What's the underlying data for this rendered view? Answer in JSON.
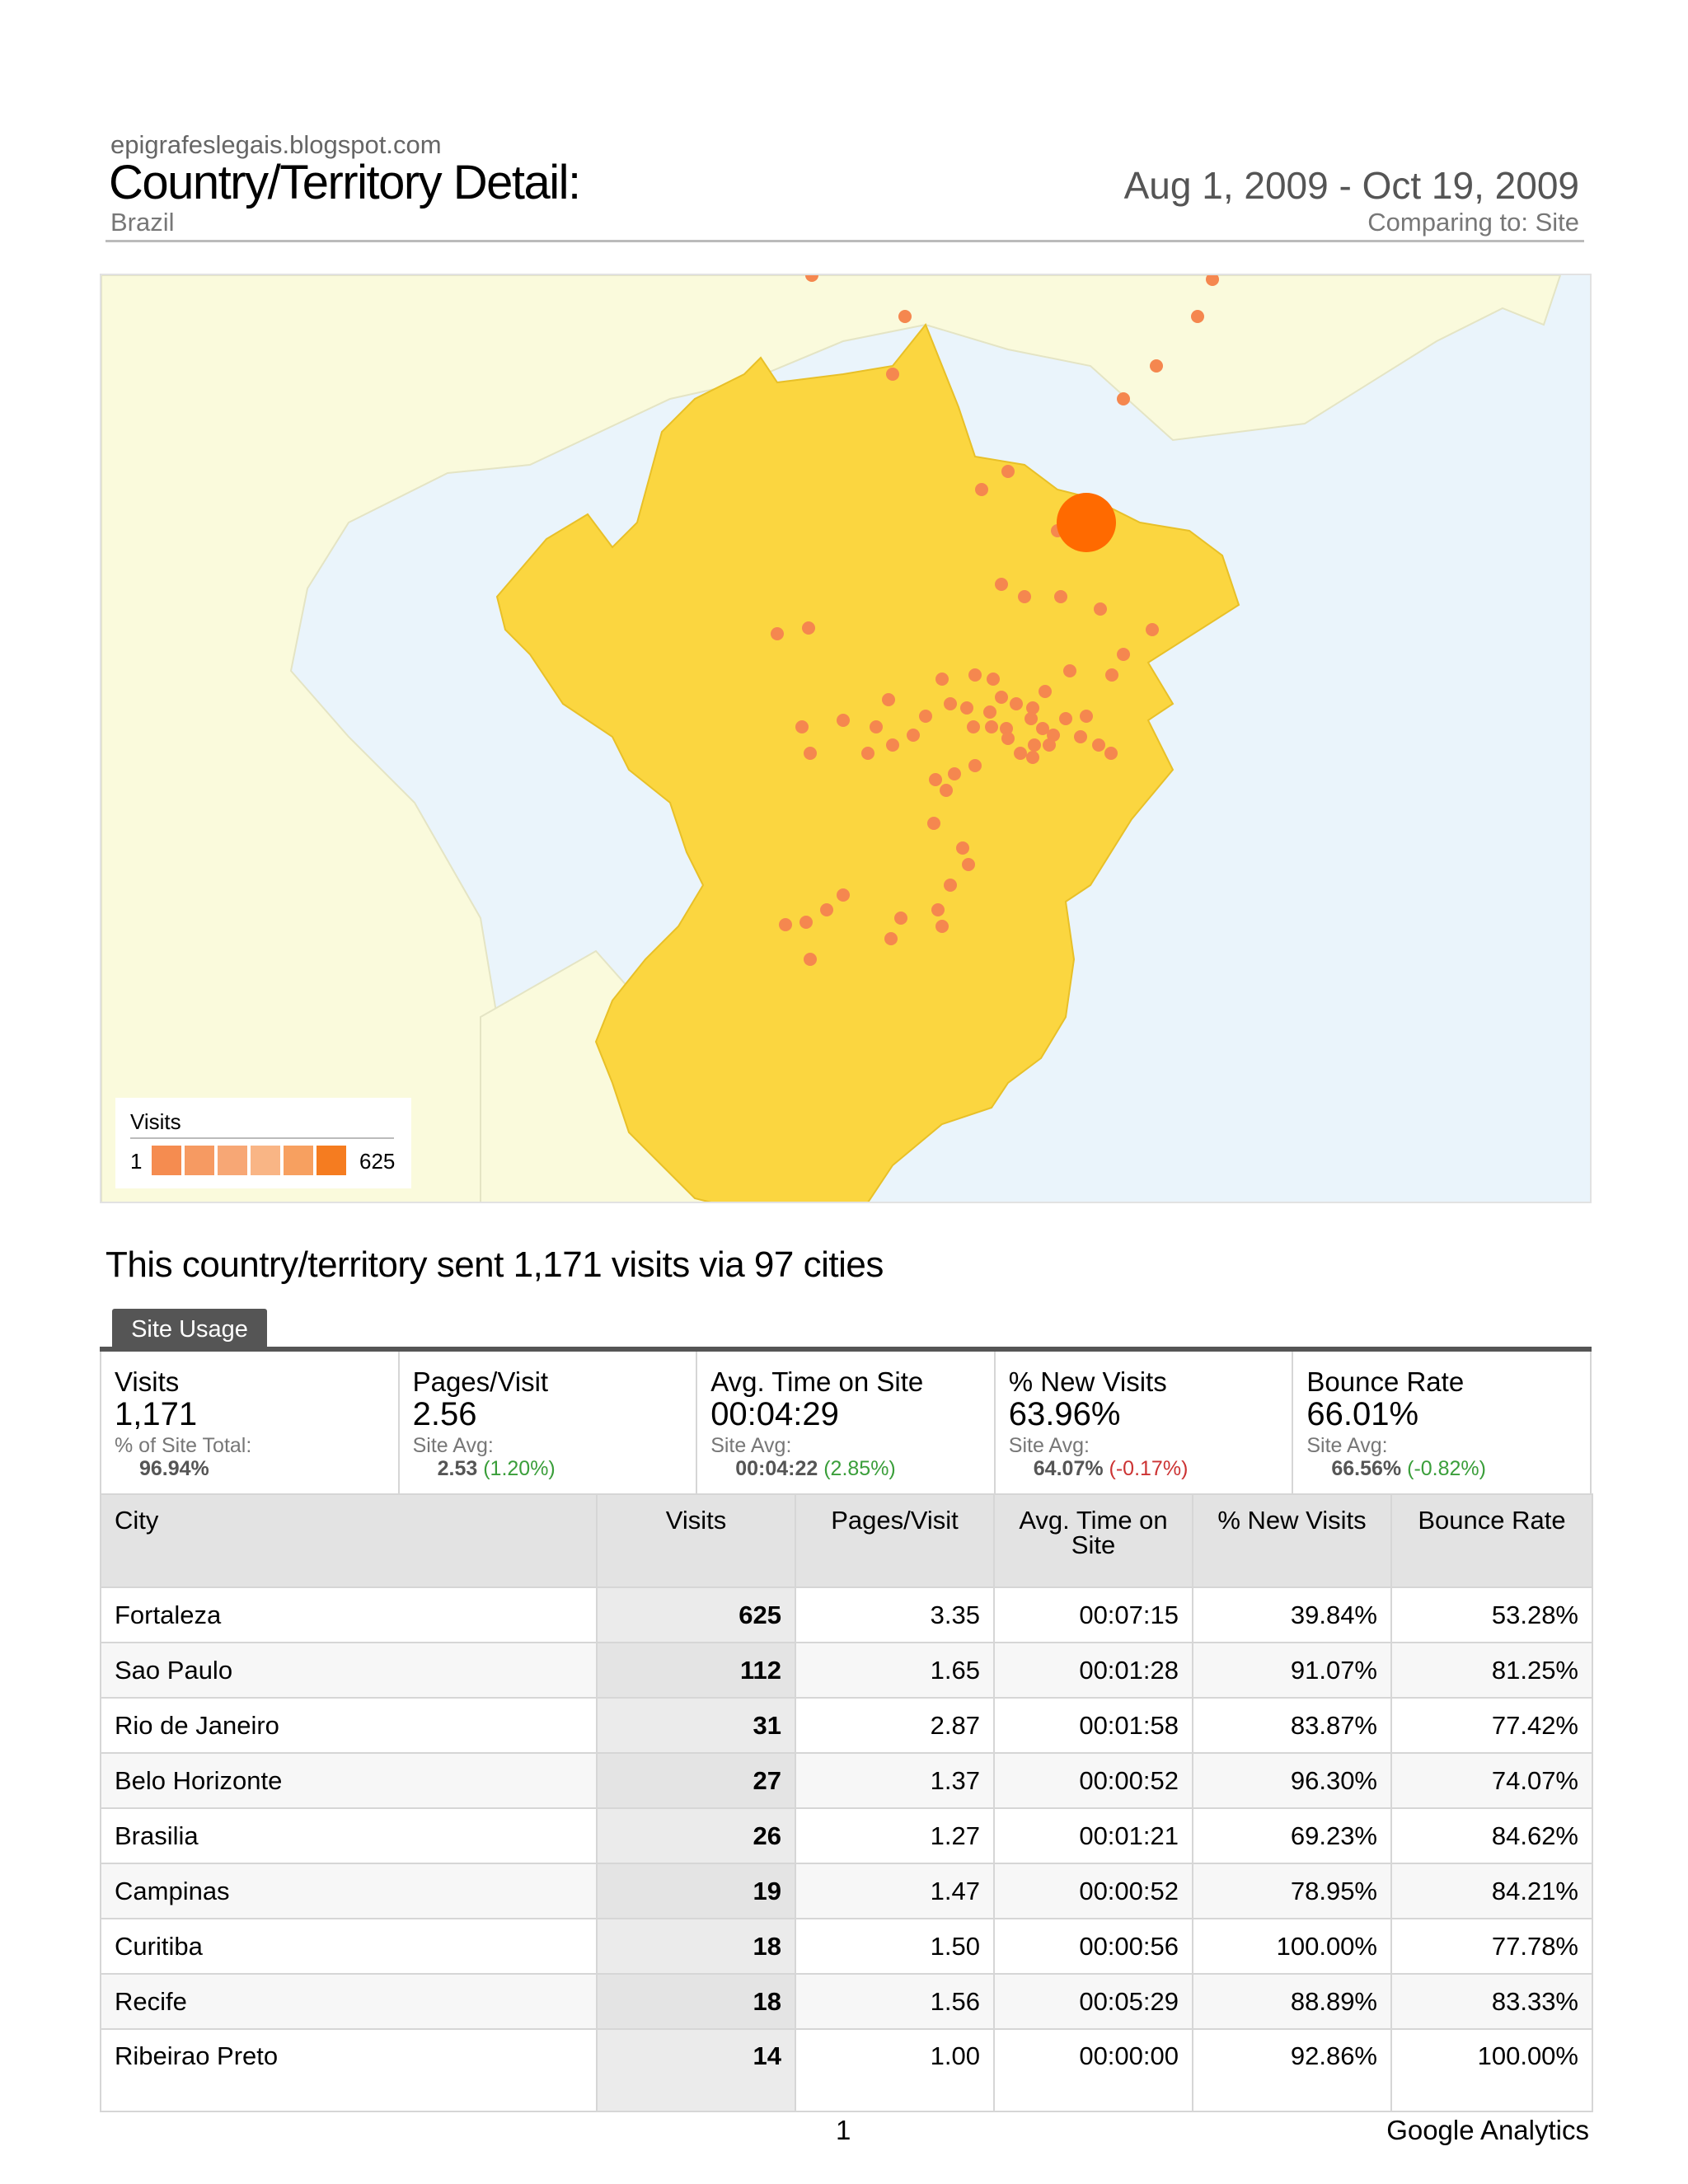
{
  "header": {
    "site": "epigrafeslegais.blogspot.com",
    "title": "Country/Territory Detail:",
    "subtitle": "Brazil",
    "date_range": "Aug 1, 2009 - Oct 19, 2009",
    "comparing": "Comparing to: Site"
  },
  "map": {
    "legend_title": "Visits",
    "legend_min": "1",
    "legend_max": "625",
    "legend_colors": [
      "#f58c50",
      "#f69a62",
      "#f7a775",
      "#f9b585",
      "#f7a060",
      "#f57c20"
    ],
    "country_color": "#fbd640",
    "land_color": "#fafadc",
    "ocean_color": "#eaf4fb",
    "marker_color": "#f5874f",
    "highlight_marker_color": "#ff6a00"
  },
  "summary_text": "This country/territory sent 1,171 visits via 97 cities",
  "tab_label": "Site Usage",
  "metrics": [
    {
      "label": "Visits",
      "value": "1,171",
      "sub": "% of Site Total:",
      "avg": "96.94%",
      "delta": "",
      "delta_sign": ""
    },
    {
      "label": "Pages/Visit",
      "value": "2.56",
      "sub": "Site Avg:",
      "avg": "2.53",
      "delta": "(1.20%)",
      "delta_sign": "pos"
    },
    {
      "label": "Avg. Time on Site",
      "value": "00:04:29",
      "sub": "Site Avg:",
      "avg": "00:04:22",
      "delta": "(2.85%)",
      "delta_sign": "pos"
    },
    {
      "label": "% New Visits",
      "value": "63.96%",
      "sub": "Site Avg:",
      "avg": "64.07%",
      "delta": "(-0.17%)",
      "delta_sign": "neg"
    },
    {
      "label": "Bounce Rate",
      "value": "66.01%",
      "sub": "Site Avg:",
      "avg": "66.56%",
      "delta": "(-0.82%)",
      "delta_sign": "pos"
    }
  ],
  "table": {
    "columns": [
      "City",
      "Visits",
      "Pages/Visit",
      "Avg. Time on Site",
      "% New Visits",
      "Bounce Rate"
    ],
    "rows": [
      [
        "Fortaleza",
        "625",
        "3.35",
        "00:07:15",
        "39.84%",
        "53.28%"
      ],
      [
        "Sao Paulo",
        "112",
        "1.65",
        "00:01:28",
        "91.07%",
        "81.25%"
      ],
      [
        "Rio de Janeiro",
        "31",
        "2.87",
        "00:01:58",
        "83.87%",
        "77.42%"
      ],
      [
        "Belo Horizonte",
        "27",
        "1.37",
        "00:00:52",
        "96.30%",
        "74.07%"
      ],
      [
        "Brasilia",
        "26",
        "1.27",
        "00:01:21",
        "69.23%",
        "84.62%"
      ],
      [
        "Campinas",
        "19",
        "1.47",
        "00:00:52",
        "78.95%",
        "84.21%"
      ],
      [
        "Curitiba",
        "18",
        "1.50",
        "00:00:56",
        "100.00%",
        "77.78%"
      ],
      [
        "Recife",
        "18",
        "1.56",
        "00:05:29",
        "88.89%",
        "83.33%"
      ],
      [
        "Ribeirao Preto",
        "14",
        "1.00",
        "00:00:00",
        "92.86%",
        "100.00%"
      ]
    ]
  },
  "footer": {
    "page_number": "1",
    "brand": "Google Analytics"
  }
}
